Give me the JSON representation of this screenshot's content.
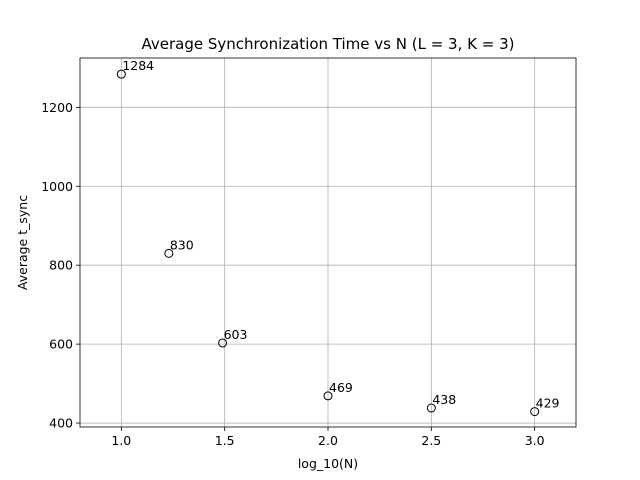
{
  "chart_data": {
    "type": "scatter",
    "title": "Average Synchronization Time vs N (L = 3, K = 3)",
    "xlabel": "log_10(N)",
    "ylabel": "Average t_sync",
    "xlim": [
      0.8,
      3.2
    ],
    "ylim": [
      390,
      1325
    ],
    "xticks": [
      "1.0",
      "1.5",
      "2.0",
      "2.5",
      "3.0"
    ],
    "yticks": [
      "400",
      "600",
      "800",
      "1000",
      "1200"
    ],
    "grid": true,
    "legend": "none",
    "marker": "hollow-circle",
    "marker_color": "#000000",
    "x": [
      1.0,
      1.23,
      1.49,
      2.0,
      2.5,
      3.0
    ],
    "y": [
      1284,
      830,
      603,
      469,
      438,
      429
    ],
    "labels": [
      "1284",
      "830",
      "603",
      "469",
      "438",
      "429"
    ]
  }
}
